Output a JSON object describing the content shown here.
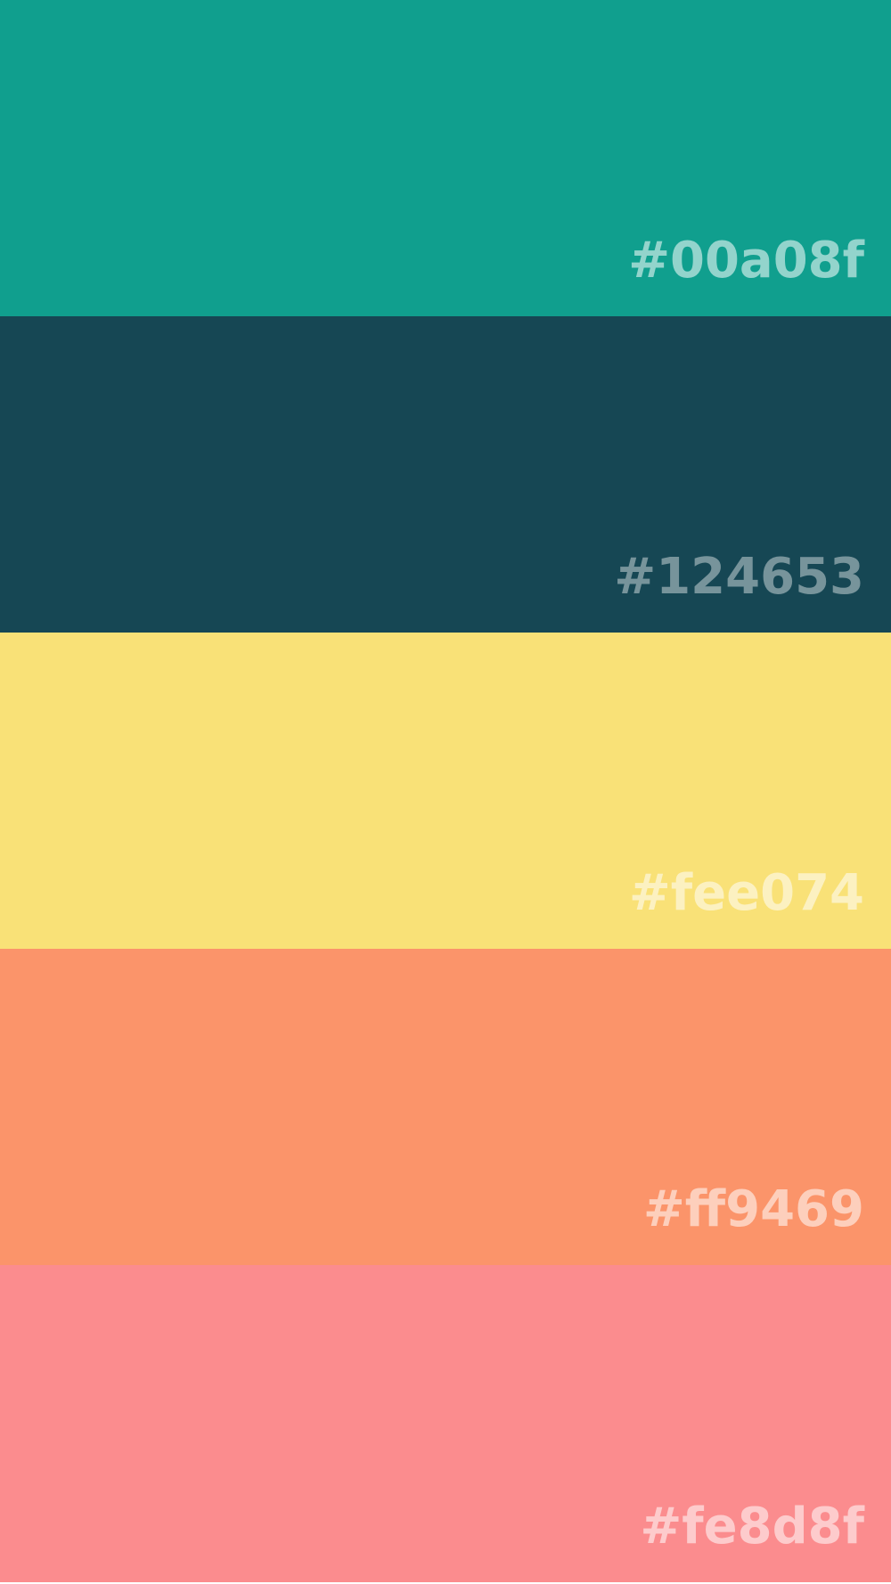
{
  "swatches": [
    {
      "label": "#00a08f",
      "color": "#109f8e",
      "tone": "light"
    },
    {
      "label": "#124653",
      "color": "#164754",
      "tone": "dark"
    },
    {
      "label": "#fee074",
      "color": "#f9e177",
      "tone": "light"
    },
    {
      "label": "#ff9469",
      "color": "#fb946a",
      "tone": "light"
    },
    {
      "label": "#fe8d8f",
      "color": "#fb8c8e",
      "tone": "light"
    }
  ]
}
